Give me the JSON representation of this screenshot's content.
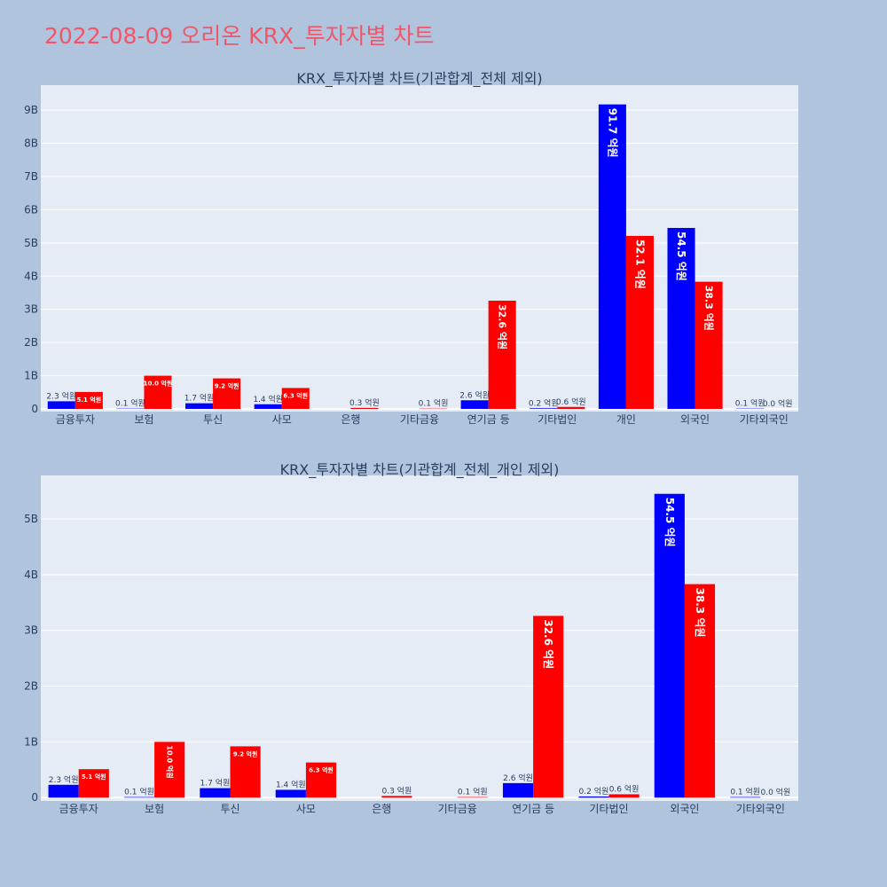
{
  "title": "2022-08-09 오리온 KRX_투자자별 차트",
  "colors": {
    "background": "#b0c4de",
    "plot_background": "#e5ecf6",
    "title": "#f0566a",
    "sell": "#0000ff",
    "buy": "#ff0000",
    "text": "#2a3f5f"
  },
  "chart_data": [
    {
      "type": "bar",
      "title": "KRX_투자자별 차트(기관합계_전체 제외)",
      "categories": [
        "금융투자",
        "보험",
        "투신",
        "사모",
        "은행",
        "기타금융",
        "연기금 등",
        "기타법인",
        "개인",
        "외국인",
        "기타외국인"
      ],
      "series": [
        {
          "color": "#0000ff",
          "values": [
            0.23,
            0.01,
            0.17,
            0.14,
            0.0,
            0.0,
            0.26,
            0.02,
            9.17,
            5.45,
            0.01
          ],
          "labels": [
            "2.3 억원",
            "0.1 억원",
            "1.7 억원",
            "1.4 억원",
            "",
            "",
            "2.6 억원",
            "0.2 억원",
            "91.7 억원",
            "54.5 억원",
            "0.1 억원"
          ]
        },
        {
          "color": "#ff0000",
          "values": [
            0.51,
            1.0,
            0.92,
            0.63,
            0.03,
            0.01,
            3.26,
            0.06,
            5.21,
            3.83,
            0.0
          ],
          "labels": [
            "5.1 억원",
            "10.0 억원",
            "9.2 억원",
            "6.3 억원",
            "0.3 억원",
            "0.1 억원",
            "32.6 억원",
            "0.6 억원",
            "52.1 억원",
            "38.3 억원",
            "0.0 억원"
          ]
        }
      ],
      "yticks": [
        0,
        1,
        2,
        3,
        4,
        5,
        6,
        7,
        8,
        9
      ],
      "ytick_labels": [
        "0",
        "1B",
        "2B",
        "3B",
        "4B",
        "5B",
        "6B",
        "7B",
        "8B",
        "9B"
      ],
      "ylim": [
        -0.08,
        9.75
      ],
      "grid": true
    },
    {
      "type": "bar",
      "title": "KRX_투자자별 차트(기관합계_전체_개인 제외)",
      "categories": [
        "금융투자",
        "보험",
        "투신",
        "사모",
        "은행",
        "기타금융",
        "연기금 등",
        "기타법인",
        "외국인",
        "기타외국인"
      ],
      "series": [
        {
          "color": "#0000ff",
          "values": [
            0.23,
            0.01,
            0.17,
            0.14,
            0.0,
            0.0,
            0.26,
            0.02,
            5.45,
            0.01
          ],
          "labels": [
            "2.3 억원",
            "0.1 억원",
            "1.7 억원",
            "1.4 억원",
            "",
            "",
            "2.6 억원",
            "0.2 억원",
            "54.5 억원",
            "0.1 억원"
          ]
        },
        {
          "color": "#ff0000",
          "values": [
            0.51,
            1.0,
            0.92,
            0.63,
            0.03,
            0.01,
            3.26,
            0.06,
            3.83,
            0.0
          ],
          "labels": [
            "5.1 억원",
            "10.0 억원",
            "9.2 억원",
            "6.3 억원",
            "0.3 억원",
            "0.1 억원",
            "32.6 억원",
            "0.6 억원",
            "38.3 억원",
            "0.0 억원"
          ]
        }
      ],
      "yticks": [
        0,
        1,
        2,
        3,
        4,
        5
      ],
      "ytick_labels": [
        "0",
        "1B",
        "2B",
        "3B",
        "4B",
        "5B"
      ],
      "ylim": [
        -0.06,
        5.78
      ],
      "grid": true
    }
  ]
}
